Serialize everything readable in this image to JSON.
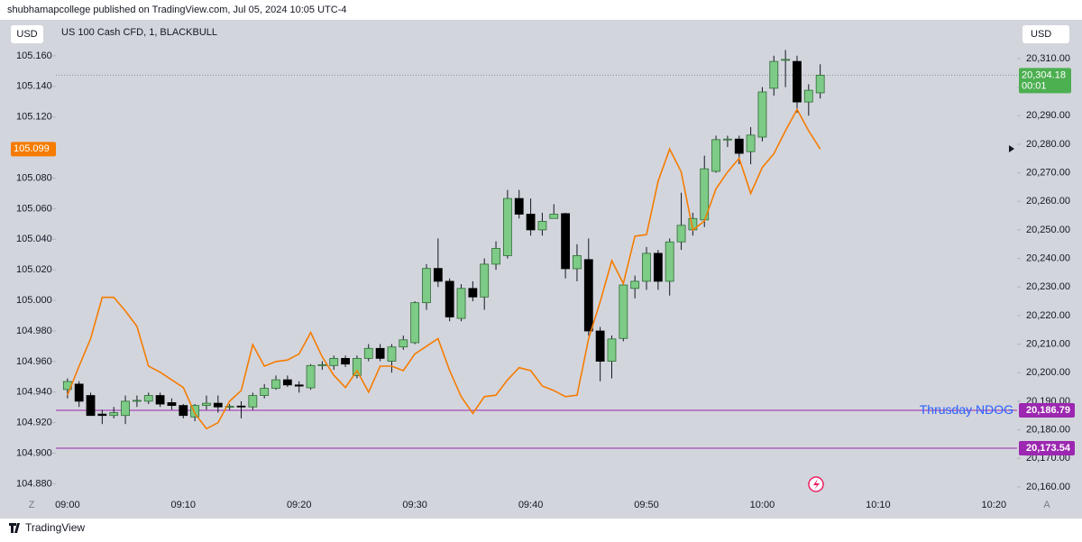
{
  "header": {
    "published": "shubhamapcollege published on TradingView.com, Jul 05, 2024 10:05 UTC-4",
    "symbol": "US 100 Cash CFD, 1, BLACKBULL",
    "currency_left": "USD",
    "currency_right": "USD",
    "footer": "TradingView",
    "scale_left_button": "Z",
    "scale_right_button": "A"
  },
  "chart_data": {
    "type": "candlestick",
    "x": [
      "09:00",
      "09:01",
      "09:02",
      "09:03",
      "09:04",
      "09:05",
      "09:06",
      "09:07",
      "09:08",
      "09:09",
      "09:10",
      "09:11",
      "09:12",
      "09:13",
      "09:14",
      "09:15",
      "09:16",
      "09:17",
      "09:18",
      "09:19",
      "09:20",
      "09:21",
      "09:22",
      "09:23",
      "09:24",
      "09:25",
      "09:26",
      "09:27",
      "09:28",
      "09:29",
      "09:30",
      "09:31",
      "09:32",
      "09:33",
      "09:34",
      "09:35",
      "09:36",
      "09:37",
      "09:38",
      "09:39",
      "09:40",
      "09:41",
      "09:42",
      "09:43",
      "09:44",
      "09:45",
      "09:46",
      "09:47",
      "09:48",
      "09:49",
      "09:50",
      "09:51",
      "09:52",
      "09:53",
      "09:54",
      "09:55",
      "09:56",
      "09:57",
      "09:58",
      "09:59",
      "10:00",
      "10:01",
      "10:02",
      "10:03",
      "10:04",
      "10:05"
    ],
    "xlim": [
      "08:59",
      "10:22"
    ],
    "xticks": [
      "09:00",
      "09:10",
      "09:20",
      "09:30",
      "09:40",
      "09:50",
      "10:00",
      "10:10",
      "10:20"
    ],
    "ylim": [
      20156.8,
      20316.3
    ],
    "yticks": [
      {
        "value": 20160,
        "label": "20,160.00"
      },
      {
        "value": 20170,
        "label": "20,170.00"
      },
      {
        "value": 20180,
        "label": "20,180.00"
      },
      {
        "value": 20190,
        "label": "20,190.00"
      },
      {
        "value": 20200,
        "label": "20,200.00"
      },
      {
        "value": 20210,
        "label": "20,210.00"
      },
      {
        "value": 20220,
        "label": "20,220.00"
      },
      {
        "value": 20230,
        "label": "20,230.00"
      },
      {
        "value": 20240,
        "label": "20,240.00"
      },
      {
        "value": 20250,
        "label": "20,250.00"
      },
      {
        "value": 20260,
        "label": "20,260.00"
      },
      {
        "value": 20270,
        "label": "20,270.00"
      },
      {
        "value": 20280,
        "label": "20,280.00"
      },
      {
        "value": 20290,
        "label": "20,290.00"
      },
      {
        "value": 20300,
        "label": "20,300.00"
      },
      {
        "value": 20310,
        "label": "20,310.00"
      }
    ],
    "y2lim": [
      104.872,
      105.17
    ],
    "y2_position": "left",
    "y2ticks": [
      {
        "value": 104.88,
        "label": "104.880"
      },
      {
        "value": 104.9,
        "label": "104.900"
      },
      {
        "value": 104.92,
        "label": "104.920"
      },
      {
        "value": 104.94,
        "label": "104.940"
      },
      {
        "value": 104.96,
        "label": "104.960"
      },
      {
        "value": 104.98,
        "label": "104.980"
      },
      {
        "value": 105,
        "label": "105.000"
      },
      {
        "value": 105.02,
        "label": "105.020"
      },
      {
        "value": 105.04,
        "label": "105.040"
      },
      {
        "value": 105.06,
        "label": "105.060"
      },
      {
        "value": 105.08,
        "label": "105.080"
      },
      {
        "value": 105.1,
        "label": "105.100"
      },
      {
        "value": 105.12,
        "label": "105.120"
      },
      {
        "value": 105.14,
        "label": "105.140"
      },
      {
        "value": 105.16,
        "label": "105.160"
      }
    ],
    "series": [
      {
        "type": "candlestick",
        "color_up": "#7dcb86",
        "color_down": "#000000",
        "open": [
          20194.1,
          20196,
          20192,
          20185.5,
          20185,
          20185,
          20190,
          20190,
          20192,
          20189.5,
          20188.5,
          20184.5,
          20188.5,
          20189.3,
          20188,
          20188.3,
          20188,
          20192,
          20194.5,
          20197.5,
          20195.7,
          20194.7,
          20202.5,
          20202.5,
          20205,
          20199,
          20205,
          20208.5,
          20204,
          20209,
          20210.5,
          20224.5,
          20236.5,
          20232,
          20219,
          20229.5,
          20226.5,
          20238,
          20241,
          20261,
          20255.5,
          20250,
          20254,
          20255.7,
          20236.4,
          20239.6,
          20214.6,
          20204,
          20212,
          20229.5,
          20232,
          20241.8,
          20232,
          20245.8,
          20250,
          20253.5,
          20270.5,
          20281.5,
          20281.8,
          20277.4,
          20282.5,
          20299.6,
          20309.5,
          20309,
          20294.8,
          20298
        ],
        "high": [
          20198,
          20197,
          20193,
          20187,
          20188,
          20192,
          20192,
          20193,
          20193,
          20191,
          20189,
          20189,
          20192,
          20192,
          20189,
          20190,
          20193,
          20196,
          20199,
          20199,
          20197,
          20203,
          20204,
          20206,
          20206,
          20206,
          20210,
          20210,
          20210,
          20213,
          20225,
          20238,
          20247,
          20233,
          20231,
          20232,
          20240,
          20246,
          20264,
          20264,
          20261,
          20256,
          20259,
          20256,
          20245,
          20247,
          20216,
          20213,
          20232,
          20234,
          20244,
          20243,
          20247,
          20263,
          20256,
          20276,
          20283,
          20283,
          20283,
          20286,
          20300,
          20311,
          20313,
          20311,
          20301,
          20308
        ],
        "low": [
          20191,
          20188,
          20185,
          20182,
          20184,
          20182,
          20188,
          20189,
          20188,
          20187,
          20184,
          20183,
          20187,
          20186,
          20187,
          20184,
          20187,
          20191,
          20194,
          20195,
          20193,
          20194,
          20201,
          20201,
          20202,
          20198,
          20204,
          20204,
          20200,
          20208,
          20210,
          20222,
          20230,
          20218,
          20218,
          20225,
          20222,
          20236,
          20240,
          20254,
          20248,
          20248,
          20254,
          20233,
          20232,
          20213,
          20197,
          20198,
          20211,
          20226,
          20229,
          20229,
          20227,
          20243,
          20248,
          20251,
          20270,
          20279,
          20273,
          20273,
          20281,
          20297,
          20300,
          20291,
          20290,
          20296
        ],
        "close": [
          20196.9,
          20190,
          20185,
          20185,
          20186,
          20190,
          20190.3,
          20192,
          20189,
          20188.5,
          20185,
          20188.5,
          20189.3,
          20188,
          20188.2,
          20188,
          20192,
          20194.5,
          20197.5,
          20195.7,
          20195.3,
          20202.5,
          20202.8,
          20205,
          20203,
          20205,
          20208.5,
          20205,
          20209,
          20211.5,
          20224.5,
          20236.5,
          20232,
          20219.5,
          20229.5,
          20226.5,
          20238,
          20243.5,
          20261,
          20255.5,
          20250,
          20253,
          20255.5,
          20236.4,
          20241,
          20214.6,
          20204,
          20211.8,
          20230.7,
          20232,
          20241.8,
          20232,
          20245.8,
          20251.6,
          20254,
          20271.4,
          20281.6,
          20281.8,
          20276.8,
          20283.2,
          20298.3,
          20309,
          20309.7,
          20294.8,
          20298.9,
          20304.18
        ]
      },
      {
        "type": "line",
        "axis": "y2",
        "color": "#f57c00",
        "values": [
          104.938,
          104.957,
          104.975,
          105.002,
          105.002,
          104.993,
          104.983,
          104.957,
          104.953,
          104.948,
          104.943,
          104.926,
          104.916,
          104.92,
          104.934,
          104.941,
          104.971,
          104.957,
          104.96,
          104.961,
          104.965,
          104.979,
          104.963,
          104.951,
          104.943,
          104.954,
          104.94,
          104.957,
          104.957,
          104.954,
          104.965,
          104.97,
          104.975,
          104.954,
          104.937,
          104.926,
          104.937,
          104.938,
          104.948,
          104.956,
          104.954,
          104.944,
          104.941,
          104.937,
          104.938,
          104.975,
          104.999,
          105.026,
          105.011,
          105.042,
          105.043,
          105.078,
          105.099,
          105.084,
          105.046,
          105.052,
          105.073,
          105.084,
          105.093,
          105.07,
          105.087,
          105.096,
          105.111,
          105.125,
          105.111,
          105.099
        ]
      }
    ],
    "hlines": [
      {
        "value": 20186.79,
        "label": "20,186.79",
        "name": "Thrusday NDOG",
        "color": "#9c27b0",
        "name_color": "#2962ff"
      },
      {
        "value": 20173.54,
        "label": "20,173.54",
        "color": "#9c27b0"
      }
    ],
    "last_price": {
      "value": 20304.18,
      "label": "20,304.18",
      "countdown": "00:01",
      "color": "#4caf50"
    },
    "line_last": {
      "value": 105.099,
      "label": "105.099",
      "color": "#f57c00"
    }
  }
}
